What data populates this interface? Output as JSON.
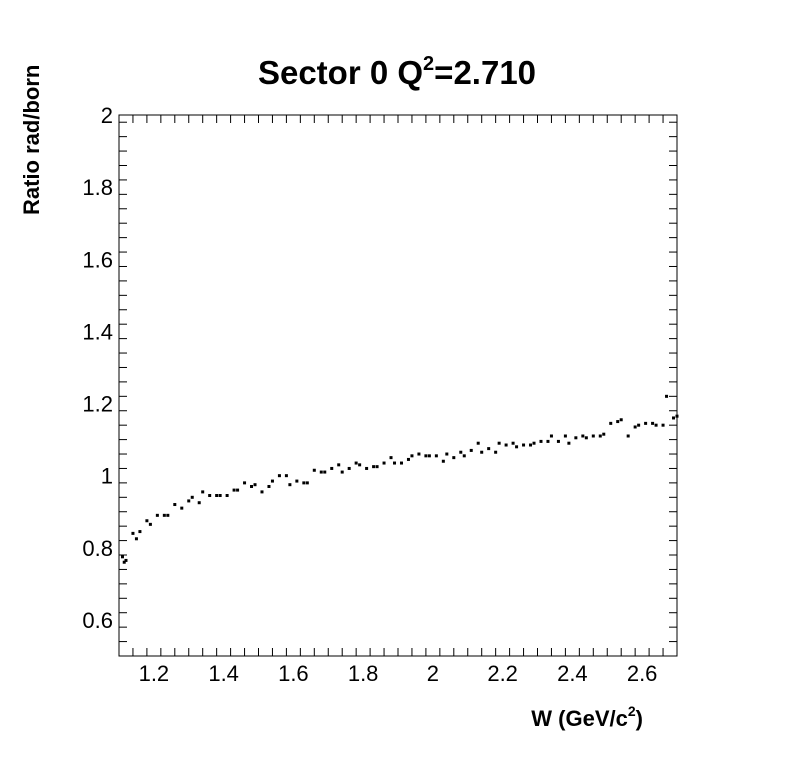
{
  "chart_data": {
    "type": "scatter",
    "title_main": "Sector 0 Q",
    "title_sup": "2",
    "title_rest": "=2.710",
    "xlabel_main": "W (GeV/c",
    "xlabel_sup": "2",
    "xlabel_close": ")",
    "ylabel": "Ratio rad/born",
    "xlim": [
      1.1,
      2.7
    ],
    "ylim": [
      0.5,
      2.0
    ],
    "xticks": [
      1.2,
      1.4,
      1.6,
      1.8,
      2.0,
      2.2,
      2.4,
      2.6
    ],
    "xtick_labels": [
      "1.2",
      "1.4",
      "1.6",
      "1.8",
      "2",
      "2.2",
      "2.4",
      "2.6"
    ],
    "yticks": [
      0.6,
      0.8,
      1.0,
      1.2,
      1.4,
      1.6,
      1.8,
      2.0
    ],
    "ytick_labels": [
      "0.6",
      "0.8",
      "1",
      "1.2",
      "1.4",
      "1.6",
      "1.8",
      "2"
    ],
    "grid": false,
    "series": [
      {
        "points": [
          [
            1.11,
            0.775
          ],
          [
            1.115,
            0.76
          ],
          [
            1.12,
            0.765
          ],
          [
            1.14,
            0.84
          ],
          [
            1.15,
            0.825
          ],
          [
            1.16,
            0.845
          ],
          [
            1.18,
            0.875
          ],
          [
            1.19,
            0.865
          ],
          [
            1.21,
            0.89
          ],
          [
            1.23,
            0.89
          ],
          [
            1.24,
            0.89
          ],
          [
            1.26,
            0.92
          ],
          [
            1.28,
            0.91
          ],
          [
            1.3,
            0.93
          ],
          [
            1.31,
            0.94
          ],
          [
            1.33,
            0.925
          ],
          [
            1.34,
            0.955
          ],
          [
            1.36,
            0.945
          ],
          [
            1.38,
            0.945
          ],
          [
            1.39,
            0.945
          ],
          [
            1.41,
            0.945
          ],
          [
            1.43,
            0.96
          ],
          [
            1.44,
            0.96
          ],
          [
            1.46,
            0.98
          ],
          [
            1.48,
            0.97
          ],
          [
            1.49,
            0.975
          ],
          [
            1.51,
            0.955
          ],
          [
            1.53,
            0.97
          ],
          [
            1.54,
            0.985
          ],
          [
            1.56,
            1.0
          ],
          [
            1.58,
            1.0
          ],
          [
            1.59,
            0.975
          ],
          [
            1.61,
            0.985
          ],
          [
            1.63,
            0.98
          ],
          [
            1.64,
            0.98
          ],
          [
            1.66,
            1.015
          ],
          [
            1.68,
            1.01
          ],
          [
            1.69,
            1.01
          ],
          [
            1.71,
            1.02
          ],
          [
            1.73,
            1.03
          ],
          [
            1.74,
            1.01
          ],
          [
            1.76,
            1.02
          ],
          [
            1.78,
            1.035
          ],
          [
            1.79,
            1.03
          ],
          [
            1.81,
            1.02
          ],
          [
            1.83,
            1.025
          ],
          [
            1.84,
            1.025
          ],
          [
            1.86,
            1.035
          ],
          [
            1.88,
            1.05
          ],
          [
            1.89,
            1.035
          ],
          [
            1.91,
            1.035
          ],
          [
            1.93,
            1.045
          ],
          [
            1.94,
            1.055
          ],
          [
            1.96,
            1.06
          ],
          [
            1.98,
            1.055
          ],
          [
            1.99,
            1.055
          ],
          [
            2.01,
            1.055
          ],
          [
            2.03,
            1.04
          ],
          [
            2.04,
            1.06
          ],
          [
            2.06,
            1.05
          ],
          [
            2.08,
            1.065
          ],
          [
            2.09,
            1.055
          ],
          [
            2.11,
            1.07
          ],
          [
            2.13,
            1.09
          ],
          [
            2.14,
            1.065
          ],
          [
            2.16,
            1.075
          ],
          [
            2.18,
            1.065
          ],
          [
            2.19,
            1.09
          ],
          [
            2.21,
            1.085
          ],
          [
            2.23,
            1.09
          ],
          [
            2.24,
            1.08
          ],
          [
            2.26,
            1.085
          ],
          [
            2.28,
            1.085
          ],
          [
            2.29,
            1.09
          ],
          [
            2.31,
            1.095
          ],
          [
            2.33,
            1.095
          ],
          [
            2.34,
            1.11
          ],
          [
            2.36,
            1.095
          ],
          [
            2.38,
            1.11
          ],
          [
            2.39,
            1.09
          ],
          [
            2.41,
            1.105
          ],
          [
            2.43,
            1.11
          ],
          [
            2.44,
            1.105
          ],
          [
            2.46,
            1.11
          ],
          [
            2.48,
            1.11
          ],
          [
            2.49,
            1.115
          ],
          [
            2.51,
            1.145
          ],
          [
            2.53,
            1.15
          ],
          [
            2.54,
            1.155
          ],
          [
            2.56,
            1.11
          ],
          [
            2.58,
            1.135
          ],
          [
            2.59,
            1.14
          ],
          [
            2.61,
            1.145
          ],
          [
            2.63,
            1.145
          ],
          [
            2.64,
            1.14
          ],
          [
            2.66,
            1.14
          ],
          [
            2.67,
            1.22
          ],
          [
            2.69,
            1.16
          ],
          [
            2.7,
            1.165
          ]
        ]
      }
    ]
  }
}
